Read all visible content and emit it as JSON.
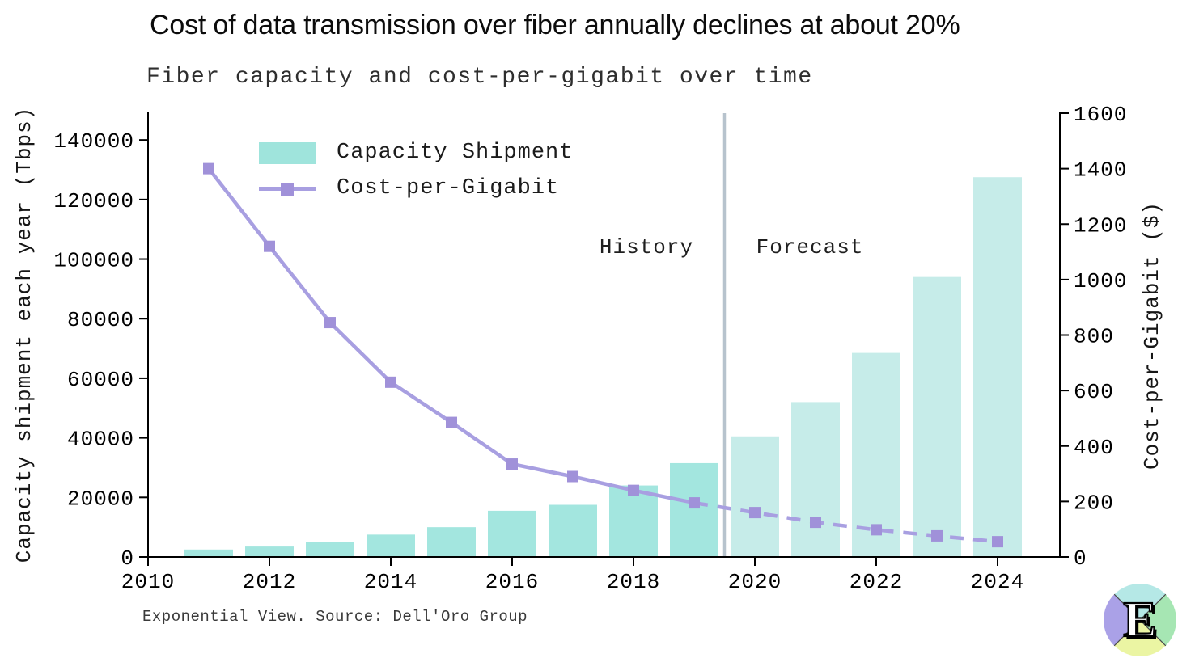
{
  "header": {
    "title": "Cost of data transmission over fiber annually declines at about 20%",
    "subtitle": "Fiber capacity and cost-per-gigabit over time"
  },
  "chart_data": {
    "type": "bar",
    "subtype": "bar-and-line combo, dual y-axes, history vs forecast split",
    "x": [
      2011,
      2012,
      2013,
      2014,
      2015,
      2016,
      2017,
      2018,
      2019,
      2020,
      2021,
      2022,
      2023,
      2024
    ],
    "series": [
      {
        "name": "Capacity Shipment",
        "type": "bar",
        "axis": "left",
        "values": [
          2500,
          3500,
          5000,
          7500,
          10000,
          15500,
          17500,
          24000,
          31500,
          40500,
          52000,
          68500,
          94000,
          127500
        ]
      },
      {
        "name": "Cost-per-Gigabit",
        "type": "line",
        "axis": "right",
        "values": [
          1400,
          1120,
          845,
          630,
          485,
          335,
          290,
          240,
          195,
          160,
          125,
          98,
          76,
          55
        ]
      }
    ],
    "forecast_start_year": 2020,
    "divider_year": 2019.5,
    "annotations": {
      "history": "History",
      "forecast": "Forecast"
    },
    "left_axis": {
      "label": "Capacity shipment each year (Tbps)",
      "ticks": [
        0,
        20000,
        40000,
        60000,
        80000,
        100000,
        120000,
        140000
      ],
      "range": [
        0,
        149000
      ]
    },
    "right_axis": {
      "label": "Cost-per-Gigabit ($)",
      "ticks": [
        0,
        200,
        400,
        600,
        800,
        1000,
        1200,
        1400,
        1600
      ],
      "range": [
        0,
        1600
      ]
    },
    "x_axis": {
      "ticks": [
        2010,
        2012,
        2014,
        2016,
        2018,
        2020,
        2022,
        2024
      ],
      "range": [
        2010,
        2025
      ]
    },
    "legend_position": "upper-left",
    "grid": false,
    "colors": {
      "bar_history": "#a3e6df",
      "bar_forecast": "#c6ece9",
      "line": "#a89fe1",
      "marker": "#a091d9",
      "divider": "#b7c3cd",
      "axis": "#000000"
    }
  },
  "footer": {
    "source": "Exponential View. Source: Dell'Oro Group"
  },
  "logo": {
    "letter": "E",
    "colors": {
      "top": "#b5e8e6",
      "right": "#a6e6b3",
      "bottom": "#ebf5a3",
      "left": "#aaa1e7"
    }
  }
}
